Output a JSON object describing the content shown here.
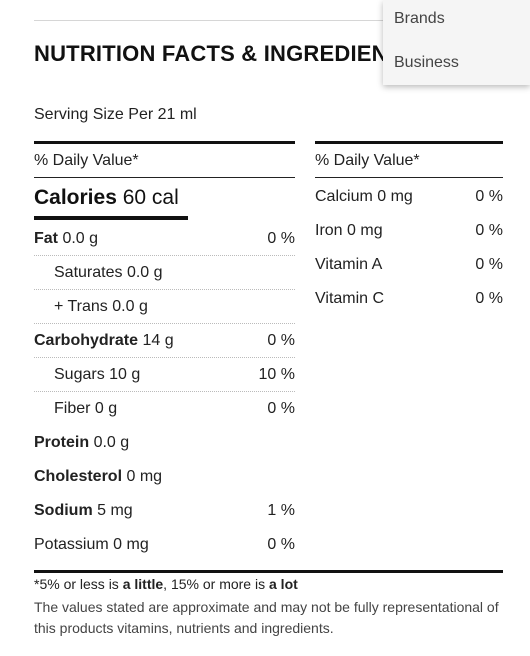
{
  "title": "NUTRITION FACTS & INGREDIENTS",
  "dropdown": {
    "items": [
      "Brands",
      "Business"
    ]
  },
  "serving": "Serving Size Per 21 ml",
  "left": {
    "dv_header": "% Daily Value*",
    "calories": {
      "label": "Calories",
      "value": "60 cal"
    },
    "rows": [
      {
        "label": "Fat",
        "value": "0.0 g",
        "pct": "0 %",
        "bold": true,
        "indent": false
      },
      {
        "label": "Saturates",
        "value": "0.0 g",
        "pct": "",
        "bold": false,
        "indent": true
      },
      {
        "label": "+ Trans",
        "value": "0.0 g",
        "pct": "",
        "bold": false,
        "indent": true
      },
      {
        "label": "Carbohydrate",
        "value": "14 g",
        "pct": "0 %",
        "bold": true,
        "indent": false
      },
      {
        "label": "Sugars",
        "value": "10 g",
        "pct": "10 %",
        "bold": false,
        "indent": true
      },
      {
        "label": "Fiber",
        "value": "0 g",
        "pct": "0 %",
        "bold": false,
        "indent": true
      },
      {
        "label": "Protein",
        "value": "0.0 g",
        "pct": "",
        "bold": true,
        "indent": false
      },
      {
        "label": "Cholesterol",
        "value": "0 mg",
        "pct": "",
        "bold": true,
        "indent": false
      },
      {
        "label": "Sodium",
        "value": "5 mg",
        "pct": "1 %",
        "bold": true,
        "indent": false
      },
      {
        "label": "Potassium",
        "value": "0 mg",
        "pct": "0 %",
        "bold": false,
        "indent": false
      }
    ]
  },
  "right": {
    "dv_header": "% Daily Value*",
    "rows": [
      {
        "label": "Calcium 0 mg",
        "pct": "0 %"
      },
      {
        "label": "Iron 0 mg",
        "pct": "0 %"
      },
      {
        "label": "Vitamin A",
        "pct": "0 %"
      },
      {
        "label": "Vitamin C",
        "pct": "0 %"
      }
    ]
  },
  "footnote": {
    "part1": "*5% or less is ",
    "bold1": "a little",
    "part2": ", 15% or more is ",
    "bold2": "a lot"
  },
  "disclaimer": "The values stated are approximate and may not be fully representational of this products vitamins, nutrients and ingredients."
}
